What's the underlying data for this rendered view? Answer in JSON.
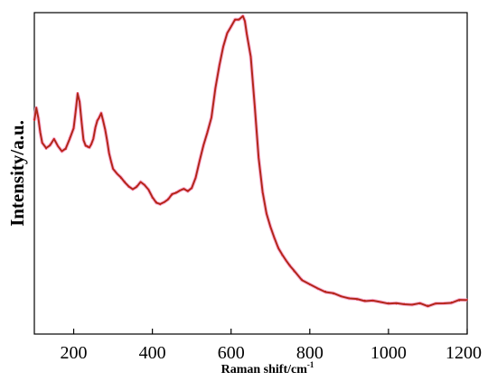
{
  "chart_data": {
    "type": "line",
    "title": "",
    "xlabel": "Raman shift/cm",
    "xlabel_superscript": "-1",
    "ylabel": "Intensity/a.u.",
    "xlim": [
      100,
      1200
    ],
    "ylim": [
      0,
      100
    ],
    "x_ticks": [
      200,
      400,
      600,
      800,
      1000,
      1200
    ],
    "x_tick_labels": [
      "200",
      "400",
      "600",
      "800",
      "1000",
      "1200"
    ],
    "y_ticks_shown": false,
    "grid": false,
    "legend": "none",
    "colors": {
      "line": "#cc1f1f",
      "line_core": "#7a3a12",
      "halo": "#f2a6cc"
    },
    "series": [
      {
        "x": [
          100,
          105,
          110,
          115,
          120,
          130,
          140,
          150,
          160,
          170,
          180,
          190,
          200,
          205,
          210,
          215,
          220,
          225,
          230,
          235,
          240,
          245,
          250,
          255,
          260,
          265,
          270,
          275,
          280,
          285,
          290,
          295,
          300,
          310,
          320,
          330,
          340,
          350,
          360,
          370,
          380,
          390,
          400,
          410,
          420,
          430,
          440,
          450,
          460,
          470,
          480,
          490,
          500,
          510,
          520,
          530,
          540,
          550,
          560,
          570,
          580,
          590,
          600,
          610,
          620,
          630,
          635,
          640,
          650,
          660,
          670,
          680,
          690,
          700,
          710,
          720,
          730,
          740,
          750,
          760,
          780,
          800,
          820,
          840,
          860,
          880,
          900,
          920,
          940,
          960,
          980,
          1000,
          1020,
          1040,
          1060,
          1080,
          1100,
          1120,
          1140,
          1160,
          1180,
          1200
        ],
        "values": [
          66.5,
          70.5,
          67,
          63,
          59.5,
          57.7,
          59,
          60.5,
          58.5,
          57,
          57.5,
          61,
          64,
          69,
          75,
          72,
          66,
          60.5,
          58.5,
          58.5,
          58,
          59,
          61,
          64,
          66.5,
          67.5,
          68.5,
          66.5,
          63.5,
          60,
          56.5,
          53.5,
          51.5,
          50,
          48.5,
          47.4,
          45.8,
          45,
          46,
          47.1,
          46.5,
          45,
          42.4,
          41.1,
          40.3,
          41,
          42.1,
          43.3,
          44.1,
          44.7,
          45,
          44.7,
          45.3,
          48.6,
          54.1,
          58.5,
          63,
          67.4,
          76.2,
          83.7,
          89.2,
          93.6,
          95.8,
          97.6,
          98,
          98.9,
          97.2,
          93.6,
          86.1,
          71,
          55,
          44,
          37.7,
          33.3,
          29.8,
          27,
          24.5,
          22.9,
          21.3,
          19.5,
          17,
          15.4,
          14.1,
          13.3,
          12.5,
          11.8,
          11.2,
          10.7,
          10.5,
          10.3,
          9.9,
          9.7,
          9.4,
          9.4,
          9.2,
          9.4,
          8.9,
          9.4,
          9.5,
          9.9,
          10.4,
          10.7
        ]
      }
    ]
  }
}
